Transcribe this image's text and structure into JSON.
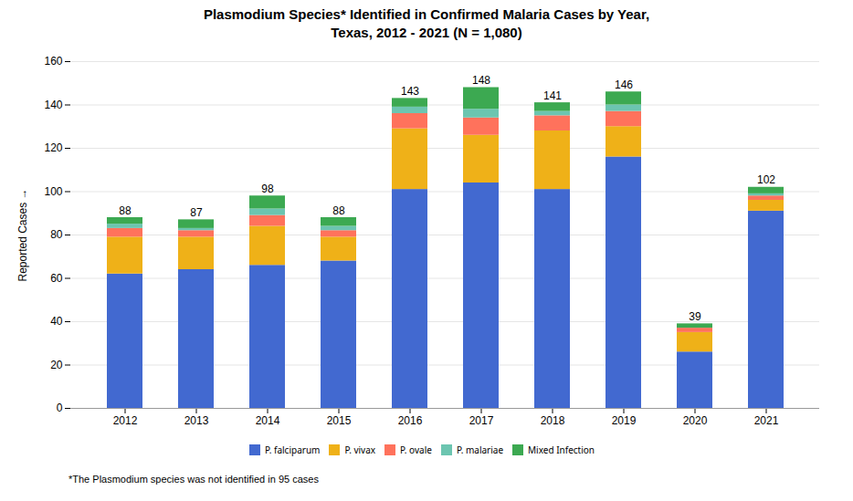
{
  "chart_data": {
    "type": "bar",
    "stacked": true,
    "title": "Plasmodium Species* Identified in Confirmed Malaria Cases by Year,\nTexas, 2012 - 2021 (N = 1,080)",
    "ylabel": "Reported Cases",
    "categories": [
      "2012",
      "2013",
      "2014",
      "2015",
      "2016",
      "2017",
      "2018",
      "2019",
      "2020",
      "2021"
    ],
    "series": [
      {
        "name": "P. falciparum",
        "values": [
          62,
          64,
          66,
          68,
          101,
          104,
          101,
          116,
          26,
          91
        ]
      },
      {
        "name": "P. vivax",
        "values": [
          17,
          15,
          18,
          11,
          28,
          22,
          27,
          14,
          9,
          5
        ]
      },
      {
        "name": "P. ovale",
        "values": [
          4,
          3,
          5,
          3,
          7,
          8,
          7,
          7,
          2,
          2
        ]
      },
      {
        "name": "P. malariae",
        "values": [
          2,
          1,
          3,
          2,
          3,
          4,
          2,
          3,
          0,
          1
        ]
      },
      {
        "name": "Mixed Infection",
        "values": [
          3,
          4,
          6,
          4,
          4,
          10,
          4,
          6,
          2,
          3
        ]
      }
    ],
    "totals": [
      88,
      87,
      98,
      88,
      143,
      148,
      141,
      146,
      39,
      102
    ],
    "ylim": [
      0,
      160
    ],
    "yticks": [
      0,
      20,
      40,
      60,
      80,
      100,
      120,
      140,
      160
    ],
    "grid": true,
    "legend": "bottom",
    "annotations": [
      "*The Plasmodium species was not identified in 95 cases"
    ]
  }
}
